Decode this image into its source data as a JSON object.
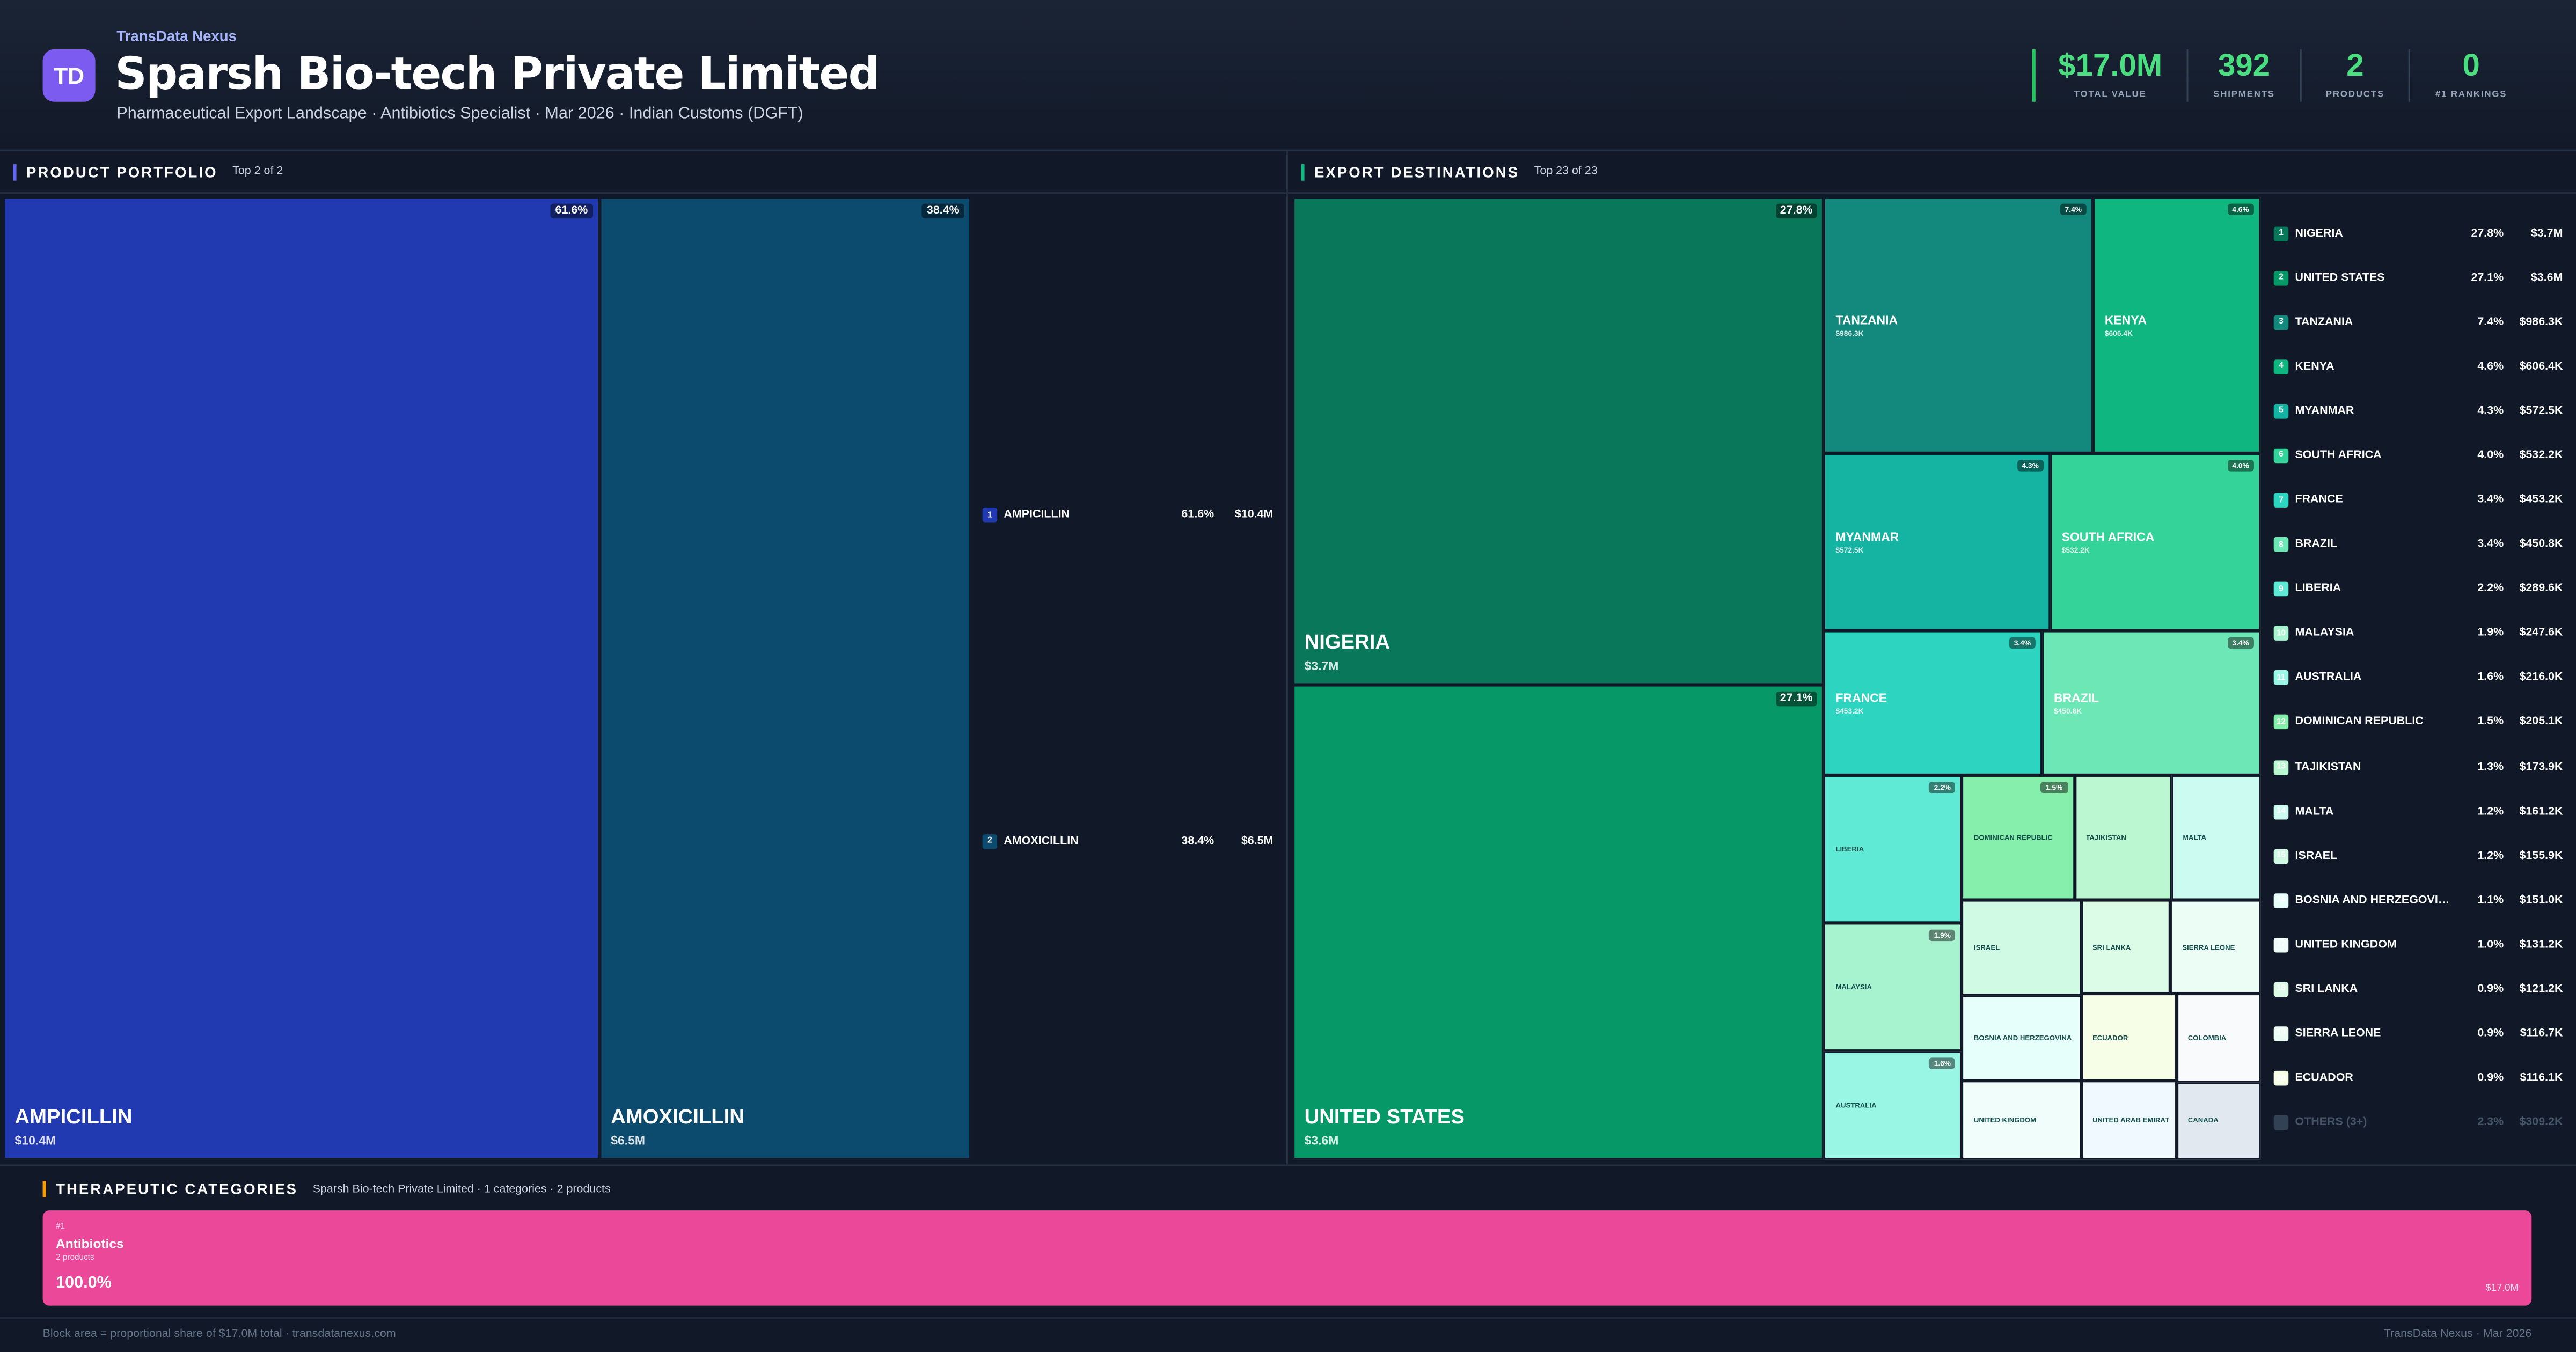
{
  "header": {
    "brand": "TransData Nexus",
    "logo": "TD",
    "title": "Sparsh Bio-tech Private Limited",
    "subtitle": "Pharmaceutical Export Landscape · Antibiotics Specialist · Mar 2026 · Indian Customs (DGFT)"
  },
  "kpis": [
    {
      "value": "$17.0M",
      "label": "TOTAL VALUE"
    },
    {
      "value": 392,
      "label": "SHIPMENTS"
    },
    {
      "value": 2,
      "label": "PRODUCTS"
    },
    {
      "value": 0,
      "label": "#1 RANKINGS"
    }
  ],
  "portfolio": {
    "title": "PRODUCT PORTFOLIO",
    "subtitle": "Top 2 of 2",
    "items": [
      {
        "rank": 1,
        "name": "AMPICILLIN",
        "share": {
          "value": 61.6,
          "label": "61.6%"
        },
        "value": "$10.4M",
        "color": "#2139b1"
      },
      {
        "rank": 2,
        "name": "AMOXICILLIN",
        "share": {
          "value": 38.4,
          "label": "38.4%"
        },
        "value": "$6.5M",
        "color": "#0c4a6e"
      }
    ]
  },
  "destinations": {
    "title": "EXPORT DESTINATIONS",
    "subtitle": "Top 23 of 23",
    "items": [
      {
        "rank": 1,
        "name": "NIGERIA",
        "share": {
          "value": 27.8,
          "label": "27.8%"
        },
        "value": "$3.7M",
        "color": "#08775a"
      },
      {
        "rank": 2,
        "name": "UNITED STATES",
        "share": {
          "value": 27.1,
          "label": "27.1%"
        },
        "value": "$3.6M",
        "color": "#079868"
      },
      {
        "rank": 3,
        "name": "TANZANIA",
        "share": {
          "value": 7.4,
          "label": "7.4%"
        },
        "value": "$986.3K",
        "color": "#12897c"
      },
      {
        "rank": 4,
        "name": "KENYA",
        "share": {
          "value": 4.6,
          "label": "4.6%"
        },
        "value": "$606.4K",
        "color": "#10b67f"
      },
      {
        "rank": 5,
        "name": "MYANMAR",
        "share": {
          "value": 4.3,
          "label": "4.3%"
        },
        "value": "$572.5K",
        "color": "#14b3a2"
      },
      {
        "rank": 6,
        "name": "SOUTH AFRICA",
        "share": {
          "value": 4.0,
          "label": "4.0%"
        },
        "value": "$532.2K",
        "color": "#34d399"
      },
      {
        "rank": 7,
        "name": "FRANCE",
        "share": {
          "value": 3.4,
          "label": "3.4%"
        },
        "value": "$453.2K",
        "color": "#2dd4bf"
      },
      {
        "rank": 8,
        "name": "BRAZIL",
        "share": {
          "value": 3.4,
          "label": "3.4%"
        },
        "value": "$450.8K",
        "color": "#6ee7b7"
      },
      {
        "rank": 9,
        "name": "LIBERIA",
        "share": {
          "value": 2.2,
          "label": "2.2%"
        },
        "value": "$289.6K",
        "color": "#5eead4"
      },
      {
        "rank": 10,
        "name": "MALAYSIA",
        "share": {
          "value": 1.9,
          "label": "1.9%"
        },
        "value": "$247.6K",
        "color": "#a7f3d0"
      },
      {
        "rank": 11,
        "name": "AUSTRALIA",
        "share": {
          "value": 1.6,
          "label": "1.6%"
        },
        "value": "$216.0K",
        "color": "#99f6e4"
      },
      {
        "rank": 12,
        "name": "DOMINICAN REPUBLIC",
        "share": {
          "value": 1.5,
          "label": "1.5%"
        },
        "value": "$205.1K",
        "color": "#86efac"
      },
      {
        "rank": 13,
        "name": "TAJIKISTAN",
        "share": {
          "value": 1.3,
          "label": "1.3%"
        },
        "value": "$173.9K",
        "color": "#bbf7d0"
      },
      {
        "rank": 14,
        "name": "MALTA",
        "share": {
          "value": 1.2,
          "label": "1.2%"
        },
        "value": "$161.2K",
        "color": "#ccfbf1"
      },
      {
        "rank": 15,
        "name": "ISRAEL",
        "share": {
          "value": 1.2,
          "label": "1.2%"
        },
        "value": "$155.9K",
        "color": "#d1fae5"
      },
      {
        "rank": 16,
        "name": "BOSNIA AND HERZEGOVINA",
        "share": {
          "value": 1.1,
          "label": "1.1%"
        },
        "value": "$151.0K",
        "color": "#e6fffa"
      },
      {
        "rank": 17,
        "name": "UNITED KINGDOM",
        "share": {
          "value": 1.0,
          "label": "1.0%"
        },
        "value": "$131.2K",
        "color": "#f0fdfa"
      },
      {
        "rank": 18,
        "name": "SRI LANKA",
        "share": {
          "value": 0.9,
          "label": "0.9%"
        },
        "value": "$121.2K",
        "color": "#dcfce7"
      },
      {
        "rank": 19,
        "name": "SIERRA LEONE",
        "share": {
          "value": 0.9,
          "label": "0.9%"
        },
        "value": "$116.7K",
        "color": "#ecfdf5"
      },
      {
        "rank": 20,
        "name": "ECUADOR",
        "share": {
          "value": 0.9,
          "label": "0.9%"
        },
        "value": "$116.1K",
        "color": "#f7fee7"
      }
    ],
    "others": {
      "label": "OTHERS (3+)",
      "share": {
        "value": 2.3,
        "label": "2.3%"
      },
      "value": "$309.2K",
      "color": "#334155",
      "items": [
        {
          "name": "UNITED ARAB EMIRATES",
          "share": 0.8,
          "color": "#f0f9ff"
        },
        {
          "name": "COLOMBIA",
          "share": 0.8,
          "color": "#f8fafc"
        },
        {
          "name": "CANADA",
          "share": 0.7,
          "color": "#e2e8f0"
        }
      ]
    }
  },
  "categories": {
    "title": "THERAPEUTIC CATEGORIES",
    "subtitle": "Sparsh Bio-tech Private Limited · 1 categories · 2 products",
    "items": [
      {
        "rank": "#1",
        "name": "Antibiotics",
        "products": "2 products",
        "share": {
          "value": 100,
          "label": "100.0%"
        },
        "value": "$17.0M",
        "color": "#ec4899"
      }
    ]
  },
  "footer": {
    "left": "Block area = proportional share of $17.0M total · transdatanexus.com",
    "right": "TransData Nexus · Mar 2026"
  }
}
